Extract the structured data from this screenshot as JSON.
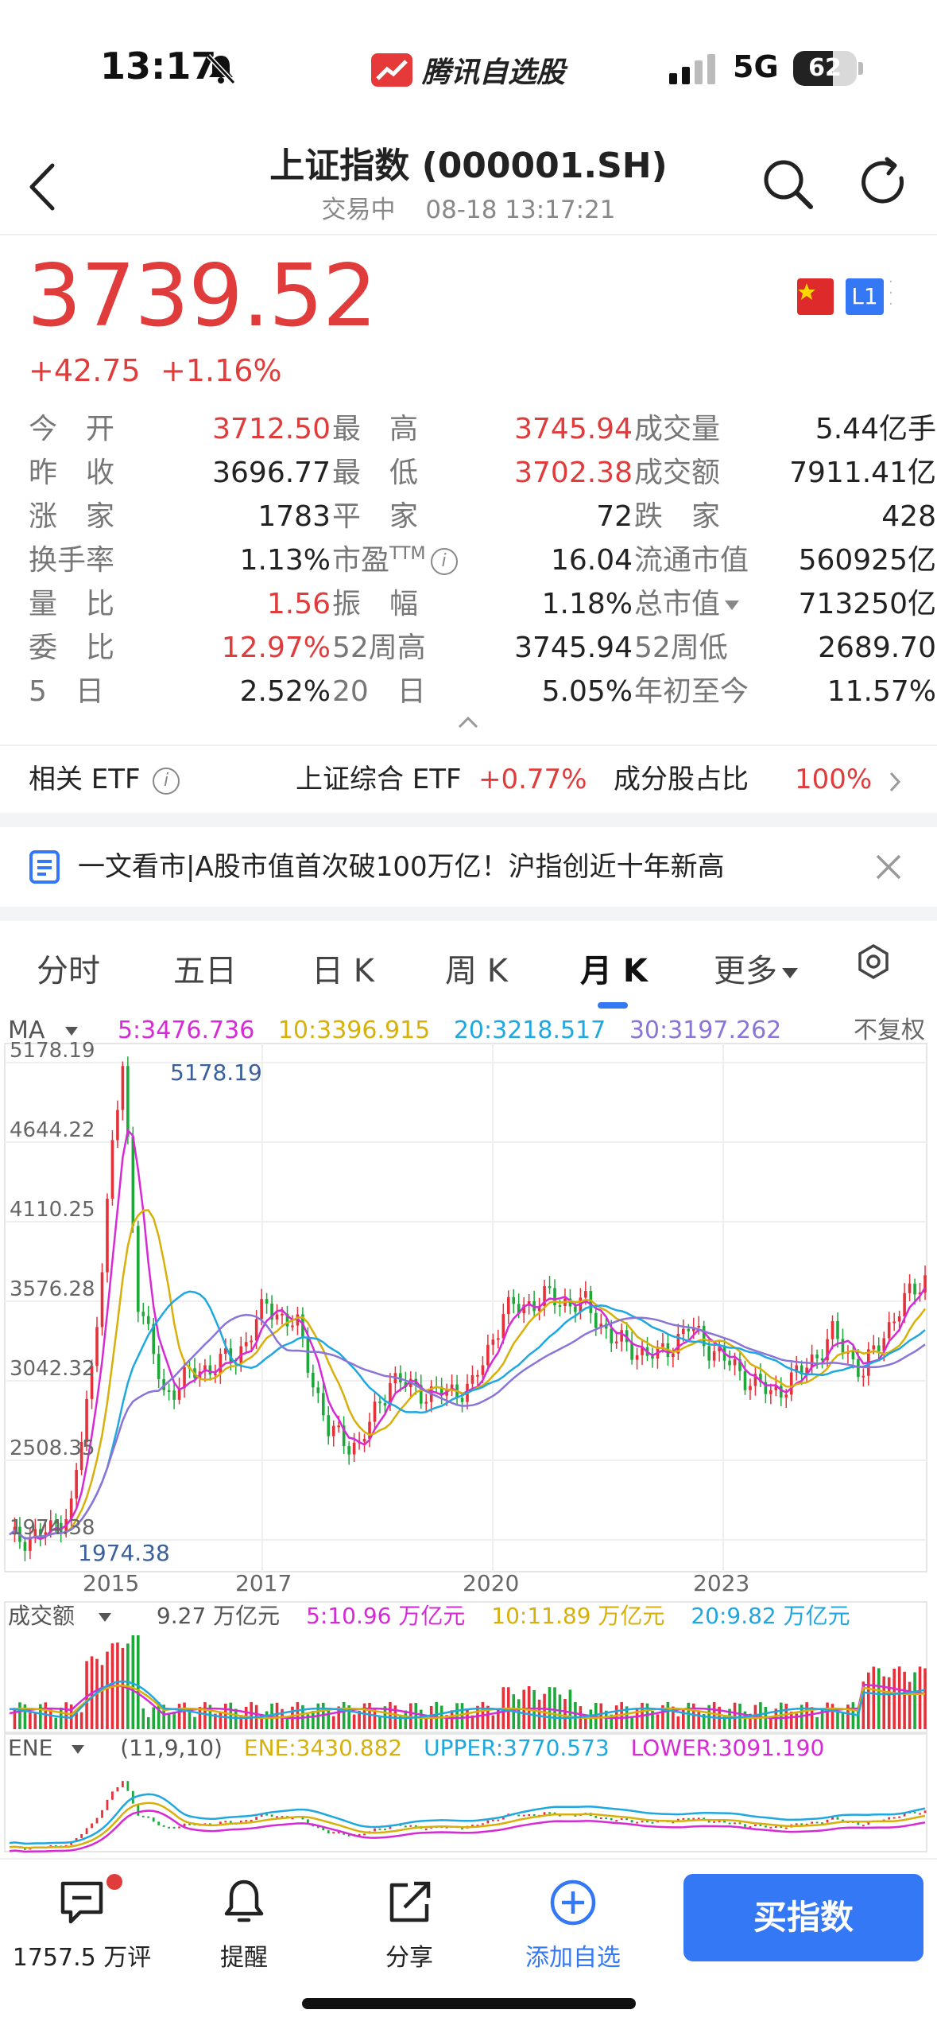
{
  "status_bar": {
    "time": "13:17",
    "app_name": "腾讯自选股",
    "network": "5G",
    "battery": "62",
    "battery_level": 0.62
  },
  "header": {
    "title": "上证指数 (000001.SH)",
    "status": "交易中",
    "datetime": "08-18 13:17:21"
  },
  "quote": {
    "price": "3739.52",
    "change": "+42.75",
    "change_pct": "+1.16%",
    "level_badge": "L1"
  },
  "stats": [
    [
      {
        "label": "今　开",
        "value": "3712.50",
        "red": true
      },
      {
        "label": "最　高",
        "value": "3745.94",
        "red": true
      },
      {
        "label": "成交量",
        "value": "5.44亿手",
        "red": false
      }
    ],
    [
      {
        "label": "昨　收",
        "value": "3696.77",
        "red": false
      },
      {
        "label": "最　低",
        "value": "3702.38",
        "red": true
      },
      {
        "label": "成交额",
        "value": "7911.41亿",
        "red": false
      }
    ],
    [
      {
        "label": "涨　家",
        "value": "1783",
        "red": false
      },
      {
        "label": "平　家",
        "value": "72",
        "red": false
      },
      {
        "label": "跌　家",
        "value": "428",
        "red": false
      }
    ],
    [
      {
        "label": "换手率",
        "value": "1.13%",
        "red": false
      },
      {
        "label": "市盈",
        "label_sup": "TTM",
        "value": "16.04",
        "red": false
      },
      {
        "label": "流通市值",
        "value": "560925亿",
        "red": false
      }
    ],
    [
      {
        "label": "量　比",
        "value": "1.56",
        "red": true
      },
      {
        "label": "振　幅",
        "value": "1.18%",
        "red": false
      },
      {
        "label": "总市值",
        "value": "713250亿",
        "red": false
      }
    ],
    [
      {
        "label": "委　比",
        "value": "12.97%",
        "red": true
      },
      {
        "label": "52周高",
        "value": "3745.94",
        "red": false
      },
      {
        "label": "52周低",
        "value": "2689.70",
        "red": false
      }
    ],
    [
      {
        "label": "5　日",
        "value": "2.52%",
        "red": false
      },
      {
        "label": "20　日",
        "value": "5.05%",
        "red": false
      },
      {
        "label": "年初至今",
        "value": "11.57%",
        "red": false
      }
    ]
  ],
  "etf": {
    "label": "相关 ETF",
    "name": "上证综合 ETF",
    "change": "+0.77%",
    "ratio_label": "成分股占比",
    "ratio": "100%"
  },
  "news": {
    "text": "一文看市|A股市值首次破100万亿！沪指创近十年新高"
  },
  "tabs": [
    {
      "label": "分时"
    },
    {
      "label": "五日"
    },
    {
      "label": "日 K"
    },
    {
      "label": "周 K"
    },
    {
      "label": "月 K"
    },
    {
      "label": "更多"
    }
  ],
  "active_tab": "月 K",
  "ma_legend": {
    "label": "MA",
    "ma5": "5:3476.736",
    "ma10": "10:3396.915",
    "ma20": "20:3218.517",
    "ma30": "30:3197.262",
    "adjust": "不复权"
  },
  "vol_legend": {
    "label": "成交额",
    "total": "9.27 万亿元",
    "ma5": "5:10.96 万亿元",
    "ma10": "10:11.89 万亿元",
    "ma20": "20:9.82 万亿元"
  },
  "ene_legend": {
    "label": "ENE",
    "params": "(11,9,10)",
    "ene": "ENE:3430.882",
    "upper": "UPPER:3770.573",
    "lower": "LOWER:3091.190"
  },
  "chart_data": {
    "type": "candlestick",
    "y_ticks": [
      "5178.19",
      "4644.22",
      "4110.25",
      "3576.28",
      "3042.32",
      "2508.35",
      "1974.38"
    ],
    "ylim": [
      1974.38,
      5178.19
    ],
    "x_ticks": [
      "2015",
      "2017",
      "2020",
      "2023"
    ],
    "max_label": "5178.19",
    "min_label": "1974.38",
    "colors": {
      "up": "#e5313a",
      "down": "#1fa83a",
      "ma5": "#d62ad6",
      "ma10": "#d8b00a",
      "ma20": "#1fa8e0",
      "ma30": "#8a74d8"
    }
  },
  "bottom_bar": {
    "comments": "1757.5 万评",
    "remind": "提醒",
    "share": "分享",
    "watch": "添加自选",
    "buy": "买指数"
  }
}
